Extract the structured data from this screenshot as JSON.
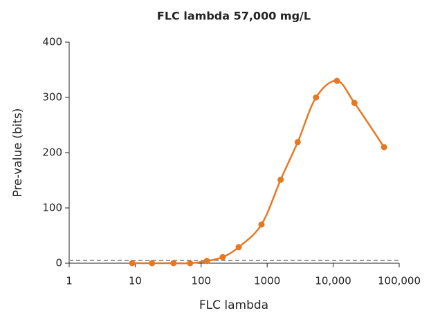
{
  "chart_data": {
    "type": "line",
    "title": "FLC lambda 57,000 mg/L",
    "x_label": "FLC lambda",
    "y_label": "Pre-value (bits)",
    "x_scale": "log",
    "xlim": [
      1,
      100000
    ],
    "xticks": [
      1,
      10,
      100,
      1000,
      {
        "value": 10000,
        "label": "10,000"
      },
      {
        "value": 100000,
        "label": "100,000"
      }
    ],
    "ylim": [
      0,
      400
    ],
    "yticks": [
      0,
      100,
      200,
      300,
      400
    ],
    "reference_line": 5,
    "reference_color": "#999999",
    "series": [
      {
        "name": "FLC lambda",
        "color": "#e87722",
        "x": [
          9,
          18,
          38,
          68,
          122,
          212,
          370,
          820,
          1600,
          2900,
          5500,
          11400,
          21000,
          59000
        ],
        "values": [
          0,
          0,
          0,
          0,
          4,
          11,
          29,
          70,
          151,
          219,
          300,
          330,
          290,
          210
        ]
      }
    ]
  }
}
